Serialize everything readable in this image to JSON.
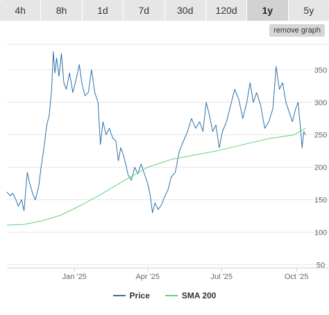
{
  "tabs": [
    {
      "label": "4h",
      "active": false
    },
    {
      "label": "8h",
      "active": false
    },
    {
      "label": "1d",
      "active": false
    },
    {
      "label": "7d",
      "active": false
    },
    {
      "label": "30d",
      "active": false
    },
    {
      "label": "120d",
      "active": false
    },
    {
      "label": "1y",
      "active": true
    },
    {
      "label": "5y",
      "active": false
    }
  ],
  "remove_graph_label": "remove graph",
  "legend": {
    "price_label": "Price",
    "sma_label": "SMA 200",
    "price_color": "#2c6fa8",
    "sma_color": "#5dd27a"
  },
  "chart_data": {
    "type": "line",
    "ylim": [
      45,
      385
    ],
    "x_range": [
      "2024-10-10",
      "2025-10-12"
    ],
    "yticks": [
      50,
      100,
      150,
      200,
      250,
      300,
      350
    ],
    "xticks": [
      {
        "label": "Jan '25",
        "date": "2025-01-01"
      },
      {
        "label": "Apr '25",
        "date": "2025-04-01"
      },
      {
        "label": "Jul '25",
        "date": "2025-07-01"
      },
      {
        "label": "Oct '25",
        "date": "2025-10-01"
      }
    ],
    "grid": true,
    "legend_position": "bottom-center",
    "series": [
      {
        "name": "Price",
        "color": "#2c6fa8",
        "points": [
          [
            "2024-10-10",
            162
          ],
          [
            "2024-10-14",
            156
          ],
          [
            "2024-10-17",
            160
          ],
          [
            "2024-10-21",
            150
          ],
          [
            "2024-10-24",
            140
          ],
          [
            "2024-10-28",
            150
          ],
          [
            "2024-10-31",
            133
          ],
          [
            "2024-11-04",
            192
          ],
          [
            "2024-11-07",
            175
          ],
          [
            "2024-11-11",
            158
          ],
          [
            "2024-11-14",
            150
          ],
          [
            "2024-11-18",
            170
          ],
          [
            "2024-11-21",
            200
          ],
          [
            "2024-11-25",
            235
          ],
          [
            "2024-11-28",
            265
          ],
          [
            "2024-12-01",
            280
          ],
          [
            "2024-12-04",
            320
          ],
          [
            "2024-12-06",
            378
          ],
          [
            "2024-12-08",
            345
          ],
          [
            "2024-12-10",
            368
          ],
          [
            "2024-12-13",
            340
          ],
          [
            "2024-12-16",
            375
          ],
          [
            "2024-12-19",
            330
          ],
          [
            "2024-12-22",
            320
          ],
          [
            "2024-12-26",
            345
          ],
          [
            "2024-12-30",
            315
          ],
          [
            "2025-01-03",
            335
          ],
          [
            "2025-01-07",
            358
          ],
          [
            "2025-01-10",
            330
          ],
          [
            "2025-01-14",
            310
          ],
          [
            "2025-01-18",
            315
          ],
          [
            "2025-01-22",
            350
          ],
          [
            "2025-01-26",
            315
          ],
          [
            "2025-01-30",
            300
          ],
          [
            "2025-02-02",
            235
          ],
          [
            "2025-02-05",
            270
          ],
          [
            "2025-02-09",
            250
          ],
          [
            "2025-02-13",
            260
          ],
          [
            "2025-02-17",
            245
          ],
          [
            "2025-02-21",
            240
          ],
          [
            "2025-02-24",
            210
          ],
          [
            "2025-02-27",
            230
          ],
          [
            "2025-03-02",
            220
          ],
          [
            "2025-03-05",
            205
          ],
          [
            "2025-03-08",
            188
          ],
          [
            "2025-03-12",
            180
          ],
          [
            "2025-03-16",
            200
          ],
          [
            "2025-03-20",
            190
          ],
          [
            "2025-03-24",
            205
          ],
          [
            "2025-03-28",
            190
          ],
          [
            "2025-04-01",
            175
          ],
          [
            "2025-04-04",
            158
          ],
          [
            "2025-04-07",
            130
          ],
          [
            "2025-04-10",
            145
          ],
          [
            "2025-04-14",
            135
          ],
          [
            "2025-04-18",
            142
          ],
          [
            "2025-04-22",
            155
          ],
          [
            "2025-04-26",
            165
          ],
          [
            "2025-04-30",
            185
          ],
          [
            "2025-05-05",
            192
          ],
          [
            "2025-05-10",
            225
          ],
          [
            "2025-05-15",
            240
          ],
          [
            "2025-05-20",
            255
          ],
          [
            "2025-05-25",
            275
          ],
          [
            "2025-05-30",
            260
          ],
          [
            "2025-06-04",
            270
          ],
          [
            "2025-06-08",
            255
          ],
          [
            "2025-06-12",
            300
          ],
          [
            "2025-06-16",
            280
          ],
          [
            "2025-06-20",
            255
          ],
          [
            "2025-06-24",
            265
          ],
          [
            "2025-06-28",
            230
          ],
          [
            "2025-07-02",
            255
          ],
          [
            "2025-07-07",
            270
          ],
          [
            "2025-07-12",
            295
          ],
          [
            "2025-07-17",
            320
          ],
          [
            "2025-07-22",
            305
          ],
          [
            "2025-07-27",
            275
          ],
          [
            "2025-08-01",
            300
          ],
          [
            "2025-08-05",
            330
          ],
          [
            "2025-08-09",
            300
          ],
          [
            "2025-08-13",
            315
          ],
          [
            "2025-08-18",
            295
          ],
          [
            "2025-08-23",
            260
          ],
          [
            "2025-08-28",
            270
          ],
          [
            "2025-09-02",
            290
          ],
          [
            "2025-09-06",
            355
          ],
          [
            "2025-09-10",
            320
          ],
          [
            "2025-09-14",
            330
          ],
          [
            "2025-09-18",
            300
          ],
          [
            "2025-09-22",
            285
          ],
          [
            "2025-09-26",
            270
          ],
          [
            "2025-09-30",
            290
          ],
          [
            "2025-10-03",
            300
          ],
          [
            "2025-10-06",
            260
          ],
          [
            "2025-10-08",
            230
          ],
          [
            "2025-10-10",
            255
          ],
          [
            "2025-10-12",
            250
          ]
        ]
      },
      {
        "name": "SMA 200",
        "color": "#5dd27a",
        "points": [
          [
            "2024-10-10",
            111
          ],
          [
            "2024-10-31",
            112
          ],
          [
            "2024-11-21",
            117
          ],
          [
            "2024-12-15",
            126
          ],
          [
            "2025-01-10",
            142
          ],
          [
            "2025-02-05",
            160
          ],
          [
            "2025-03-01",
            178
          ],
          [
            "2025-04-01",
            200
          ],
          [
            "2025-04-30",
            212
          ],
          [
            "2025-05-30",
            219
          ],
          [
            "2025-06-28",
            226
          ],
          [
            "2025-07-28",
            235
          ],
          [
            "2025-08-28",
            244
          ],
          [
            "2025-09-28",
            250
          ],
          [
            "2025-10-12",
            260
          ]
        ]
      }
    ]
  }
}
